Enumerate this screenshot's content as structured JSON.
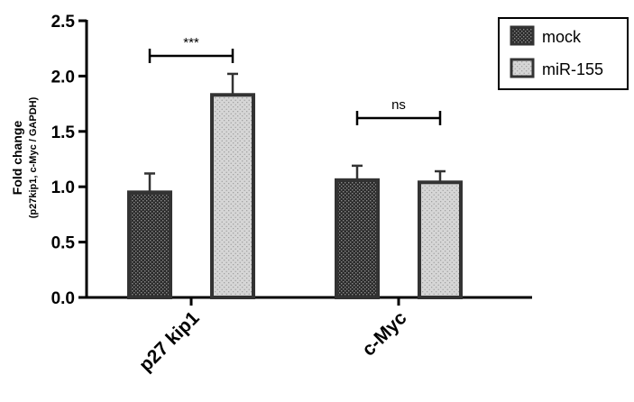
{
  "chart_data": {
    "type": "bar",
    "ylabel": "Fold change",
    "ylabel_sub": "(p27kip1, c-Myc / GAPDH)",
    "xlabel": "",
    "ylim": [
      0,
      2.5
    ],
    "yticks": [
      "0.0",
      "0.5",
      "1.0",
      "1.5",
      "2.0",
      "2.5"
    ],
    "categories": [
      "p27 kip1",
      "c-Myc"
    ],
    "series": [
      {
        "name": "mock",
        "values": [
          0.95,
          1.06
        ],
        "errors": [
          0.17,
          0.13
        ],
        "color": "#333333"
      },
      {
        "name": "miR-155",
        "values": [
          1.83,
          1.04
        ],
        "errors": [
          0.19,
          0.1
        ],
        "color": "#d3d3d3"
      }
    ],
    "significance": [
      {
        "category": "p27 kip1",
        "label": "***"
      },
      {
        "category": "c-Myc",
        "label": "ns"
      }
    ],
    "legend_position": "top-right",
    "grid": false
  }
}
